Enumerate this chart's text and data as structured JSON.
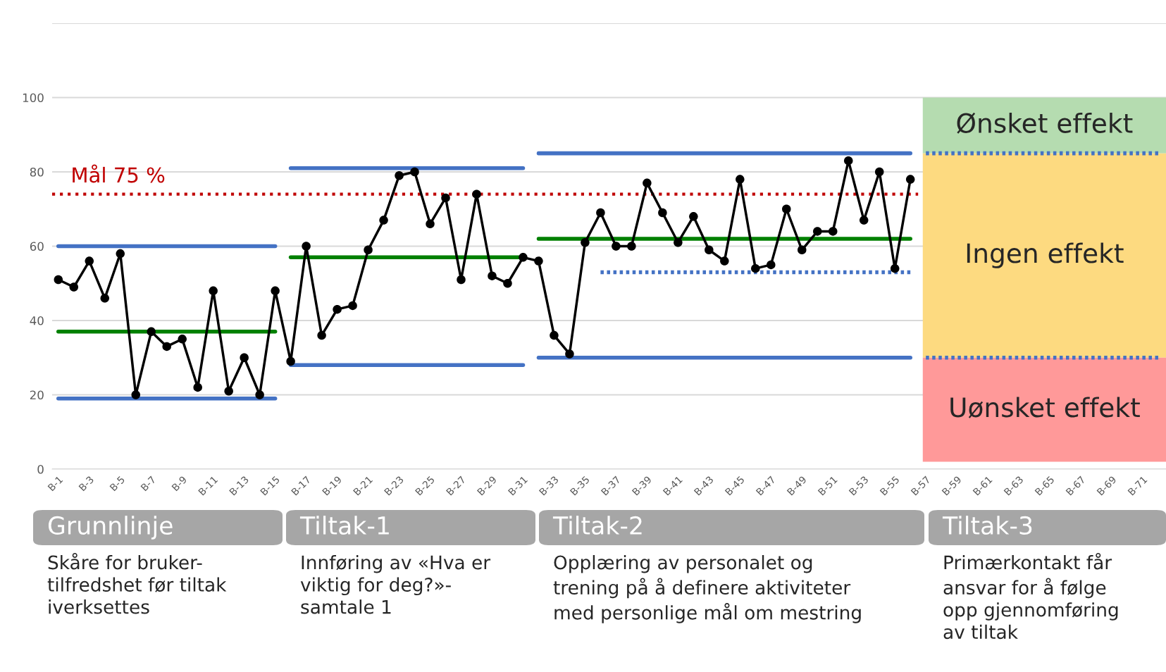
{
  "chart_data": {
    "type": "line",
    "categories": [
      "B-1",
      null,
      "B-3",
      null,
      "B-5",
      null,
      "B-7",
      null,
      "B-9",
      null,
      "B-11",
      null,
      "B-13",
      null,
      "B-15",
      null,
      "B-17",
      null,
      "B-19",
      null,
      "B-21",
      null,
      "B-23",
      null,
      "B-25",
      null,
      "B-27",
      null,
      "B-29",
      null,
      "B-31",
      null,
      "B-33",
      null,
      "B-35",
      null,
      "B-37",
      null,
      "B-39",
      null,
      "B-41",
      null,
      "B-43",
      null,
      "B-45",
      null,
      "B-47",
      null,
      "B-49",
      null,
      "B-51",
      null,
      "B-53",
      null,
      "B-55",
      null,
      "B-57",
      null,
      "B-59",
      null,
      "B-61",
      null,
      "B-63",
      null,
      "B-65",
      null,
      "B-67",
      null,
      "B-69",
      null,
      "B-71",
      null
    ],
    "series": [
      {
        "type": "line",
        "color": "#000000",
        "marker": "circle",
        "values": [
          51,
          49,
          56,
          46,
          58,
          20,
          37,
          33,
          35,
          22,
          48,
          21,
          30,
          20,
          48,
          29,
          60,
          36,
          43,
          44,
          59,
          67,
          79,
          80,
          66,
          73,
          51,
          74,
          52,
          50,
          57,
          56,
          36,
          31,
          61,
          69,
          60,
          60,
          77,
          69,
          61,
          68,
          59,
          56,
          78,
          54,
          55,
          70,
          59,
          64,
          64,
          83,
          67,
          80,
          54,
          78,
          null,
          null,
          null,
          null,
          null,
          null,
          null,
          null,
          null,
          null,
          null,
          null,
          null,
          null,
          null,
          null
        ]
      },
      {
        "type": "step",
        "color": "#4472c4",
        "values": [
          60,
          60,
          60,
          60,
          60,
          60,
          60,
          60,
          60,
          60,
          60,
          60,
          60,
          60,
          60,
          null,
          null,
          null,
          null,
          null,
          null,
          null,
          null,
          null,
          null,
          null,
          null,
          null,
          null,
          null,
          null,
          null,
          null,
          null,
          null,
          null,
          null,
          null,
          null,
          null,
          null,
          null,
          null,
          null,
          null,
          null,
          null,
          null,
          null,
          null,
          null,
          null,
          null,
          null,
          null,
          null,
          null,
          null,
          null,
          null,
          null,
          null,
          null,
          null,
          null,
          null,
          null,
          null,
          null,
          null,
          null,
          null
        ]
      },
      {
        "type": "step",
        "color": "#008000",
        "values": [
          37,
          37,
          37,
          37,
          37,
          37,
          37,
          37,
          37,
          37,
          37,
          37,
          37,
          37,
          37,
          null,
          null,
          null,
          null,
          null,
          null,
          null,
          null,
          null,
          null,
          null,
          null,
          null,
          null,
          null,
          null,
          null,
          null,
          null,
          null,
          null,
          null,
          null,
          null,
          null,
          null,
          null,
          null,
          null,
          null,
          null,
          null,
          null,
          null,
          null,
          null,
          null,
          null,
          null,
          null,
          null,
          null,
          null,
          null,
          null,
          null,
          null,
          null,
          null,
          null,
          null,
          null,
          null,
          null,
          null,
          null,
          null
        ]
      },
      {
        "type": "step",
        "color": "#4472c4",
        "values": [
          19,
          19,
          19,
          19,
          19,
          19,
          19,
          19,
          19,
          19,
          19,
          19,
          19,
          19,
          19,
          null,
          null,
          null,
          null,
          null,
          null,
          null,
          null,
          null,
          null,
          null,
          null,
          null,
          null,
          null,
          null,
          null,
          null,
          null,
          null,
          null,
          null,
          null,
          null,
          null,
          null,
          null,
          null,
          null,
          null,
          null,
          null,
          null,
          null,
          null,
          null,
          null,
          null,
          null,
          null,
          null,
          null,
          null,
          null,
          null,
          null,
          null,
          null,
          null,
          null,
          null,
          null,
          null,
          null,
          null,
          null,
          null
        ]
      },
      {
        "type": "step",
        "color": "#4472c4",
        "values": [
          null,
          null,
          null,
          null,
          null,
          null,
          null,
          null,
          null,
          null,
          null,
          null,
          null,
          null,
          null,
          81,
          81,
          81,
          81,
          81,
          81,
          81,
          81,
          81,
          81,
          81,
          81,
          81,
          81,
          81,
          81,
          null,
          null,
          null,
          null,
          null,
          null,
          null,
          null,
          null,
          null,
          null,
          null,
          null,
          null,
          null,
          null,
          null,
          null,
          null,
          null,
          null,
          null,
          null,
          null,
          null,
          null,
          null,
          null,
          null,
          null,
          null,
          null,
          null,
          null,
          null,
          null,
          null,
          null,
          null,
          null,
          null
        ]
      },
      {
        "type": "step",
        "color": "#008000",
        "values": [
          null,
          null,
          null,
          null,
          null,
          null,
          null,
          null,
          null,
          null,
          null,
          null,
          null,
          null,
          null,
          57,
          57,
          57,
          57,
          57,
          57,
          57,
          57,
          57,
          57,
          57,
          57,
          57,
          57,
          57,
          57,
          null,
          null,
          null,
          null,
          null,
          null,
          null,
          null,
          null,
          null,
          null,
          null,
          null,
          null,
          null,
          null,
          null,
          null,
          null,
          null,
          null,
          null,
          null,
          null,
          null,
          null,
          null,
          null,
          null,
          null,
          null,
          null,
          null,
          null,
          null,
          null,
          null,
          null,
          null,
          null,
          null
        ]
      },
      {
        "type": "step",
        "color": "#4472c4",
        "values": [
          null,
          null,
          null,
          null,
          null,
          null,
          null,
          null,
          null,
          null,
          null,
          null,
          null,
          null,
          null,
          28,
          28,
          28,
          28,
          28,
          28,
          28,
          28,
          28,
          28,
          28,
          28,
          28,
          28,
          28,
          28,
          null,
          null,
          null,
          null,
          null,
          null,
          null,
          null,
          null,
          null,
          null,
          null,
          null,
          null,
          null,
          null,
          null,
          null,
          null,
          null,
          null,
          null,
          null,
          null,
          null,
          null,
          null,
          null,
          null,
          null,
          null,
          null,
          null,
          null,
          null,
          null,
          null,
          null,
          null,
          null,
          null
        ]
      },
      {
        "type": "step",
        "color": "#4472c4",
        "values": [
          null,
          null,
          null,
          null,
          null,
          null,
          null,
          null,
          null,
          null,
          null,
          null,
          null,
          null,
          null,
          null,
          null,
          null,
          null,
          null,
          null,
          null,
          null,
          null,
          null,
          null,
          null,
          null,
          null,
          null,
          null,
          85,
          85,
          85,
          85,
          85,
          85,
          85,
          85,
          85,
          85,
          85,
          85,
          85,
          85,
          85,
          85,
          85,
          85,
          85,
          85,
          85,
          85,
          85,
          85,
          85,
          null,
          null,
          null,
          null,
          null,
          null,
          null,
          null,
          null,
          null,
          null,
          null,
          null,
          null,
          null,
          null
        ]
      },
      {
        "type": "step",
        "color": "#008000",
        "values": [
          null,
          null,
          null,
          null,
          null,
          null,
          null,
          null,
          null,
          null,
          null,
          null,
          null,
          null,
          null,
          null,
          null,
          null,
          null,
          null,
          null,
          null,
          null,
          null,
          null,
          null,
          null,
          null,
          null,
          null,
          null,
          62,
          62,
          62,
          62,
          62,
          62,
          62,
          62,
          62,
          62,
          62,
          62,
          62,
          62,
          62,
          62,
          62,
          62,
          62,
          62,
          62,
          62,
          62,
          62,
          62,
          null,
          null,
          null,
          null,
          null,
          null,
          null,
          null,
          null,
          null,
          null,
          null,
          null,
          null,
          null,
          null
        ]
      },
      {
        "type": "step",
        "color": "#4472c4",
        "values": [
          null,
          null,
          null,
          null,
          null,
          null,
          null,
          null,
          null,
          null,
          null,
          null,
          null,
          null,
          null,
          null,
          null,
          null,
          null,
          null,
          null,
          null,
          null,
          null,
          null,
          null,
          null,
          null,
          null,
          null,
          null,
          30,
          30,
          30,
          30,
          30,
          30,
          30,
          30,
          30,
          30,
          30,
          30,
          30,
          30,
          30,
          30,
          30,
          30,
          30,
          30,
          30,
          30,
          30,
          30,
          30,
          null,
          null,
          null,
          null,
          null,
          null,
          null,
          null,
          null,
          null,
          null,
          null,
          null,
          null,
          null,
          null
        ]
      },
      {
        "type": "step",
        "color": "#4472c4",
        "line_style": "dotted",
        "values": [
          null,
          null,
          null,
          null,
          null,
          null,
          null,
          null,
          null,
          null,
          null,
          null,
          null,
          null,
          null,
          null,
          null,
          null,
          null,
          null,
          null,
          null,
          null,
          null,
          null,
          null,
          null,
          null,
          null,
          null,
          null,
          null,
          null,
          null,
          null,
          53,
          53,
          53,
          53,
          53,
          53,
          53,
          53,
          53,
          53,
          53,
          53,
          53,
          53,
          53,
          53,
          53,
          53,
          53,
          53,
          53,
          null,
          null,
          null,
          null,
          null,
          null,
          null,
          null,
          null,
          null,
          null,
          null,
          null,
          null,
          null,
          null
        ]
      },
      {
        "type": "step",
        "color": "#4472c4",
        "line_style": "dotted",
        "values": [
          null,
          null,
          null,
          null,
          null,
          null,
          null,
          null,
          null,
          null,
          null,
          null,
          null,
          null,
          null,
          null,
          null,
          null,
          null,
          null,
          null,
          null,
          null,
          null,
          null,
          null,
          null,
          null,
          null,
          null,
          null,
          null,
          null,
          null,
          null,
          null,
          null,
          null,
          null,
          null,
          null,
          null,
          null,
          null,
          null,
          null,
          null,
          null,
          null,
          null,
          null,
          null,
          null,
          null,
          null,
          null,
          85,
          85,
          85,
          85,
          85,
          85,
          85,
          85,
          85,
          85,
          85,
          85,
          85,
          85,
          85,
          85
        ]
      },
      {
        "type": "step",
        "color": "#4472c4",
        "line_style": "dotted",
        "values": [
          null,
          null,
          null,
          null,
          null,
          null,
          null,
          null,
          null,
          null,
          null,
          null,
          null,
          null,
          null,
          null,
          null,
          null,
          null,
          null,
          null,
          null,
          null,
          null,
          null,
          null,
          null,
          null,
          null,
          null,
          null,
          null,
          null,
          null,
          null,
          null,
          null,
          null,
          null,
          null,
          null,
          null,
          null,
          null,
          null,
          null,
          null,
          null,
          null,
          null,
          null,
          null,
          null,
          null,
          null,
          null,
          30,
          30,
          30,
          30,
          30,
          30,
          30,
          30,
          30,
          30,
          30,
          30,
          30,
          30,
          30,
          30
        ]
      }
    ],
    "ref_lines": [
      {
        "axis": "y",
        "value": 74,
        "label": "Mål 75 %",
        "color": "#c00000",
        "line_style": "dotted"
      }
    ],
    "bands": [
      {
        "axis": "y",
        "from": 85,
        "to": 100,
        "label": "Ønsket effekt",
        "color": "#b5dcb0"
      },
      {
        "axis": "y",
        "from": 30,
        "to": 85,
        "label": "Ingen effekt",
        "color": "#fdda80"
      },
      {
        "axis": "y",
        "from": 2,
        "to": 30,
        "label": "Uønsket effekt",
        "color": "#ff9999"
      }
    ],
    "ylim": [
      0,
      120
    ],
    "yticks": [
      0,
      20,
      40,
      60,
      80,
      100,
      {
        "value": 120,
        "label": null
      }
    ],
    "grid": "y",
    "legend": false,
    "annotations": [
      "Grunnlinje",
      "Tiltak-1",
      "Tiltak-2",
      "Tiltak-3",
      "Skåre for bruker-\ntilfredshet før tiltak\niverksettes",
      "Innføring av «Hva er\nviktig for deg?»-\nsamtale 1",
      "Opplæring av personalet og\ntrening på å definere aktiviteter\nmed personlige mål om mestring",
      "Primærkontakt får\nansvar for å følge\nopp gjennomføring\nav tiltak"
    ]
  }
}
